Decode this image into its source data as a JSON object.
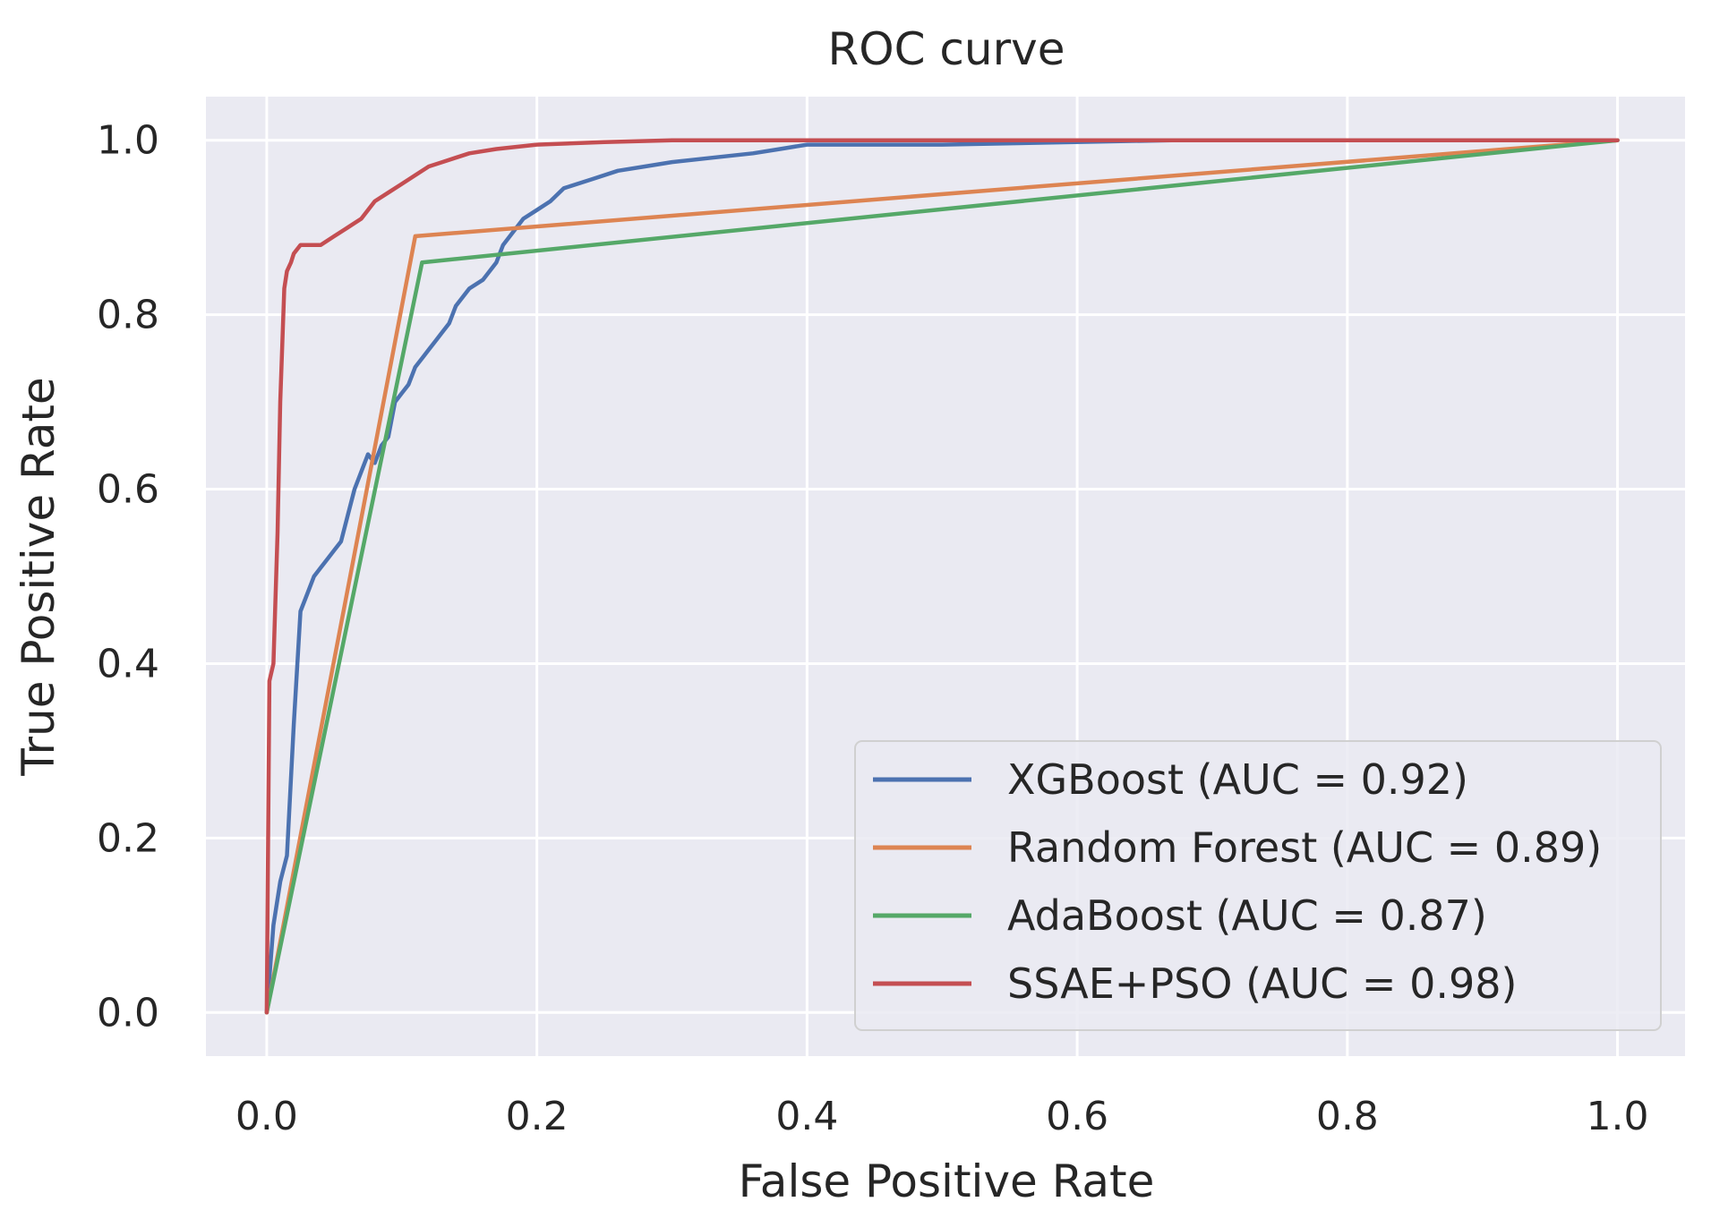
{
  "chart_data": {
    "type": "line",
    "title": "ROC curve",
    "xlabel": "False Positive Rate",
    "ylabel": "True Positive Rate",
    "xlim": [
      -0.045,
      1.05
    ],
    "ylim": [
      -0.05,
      1.05
    ],
    "xticks": [
      0.0,
      0.2,
      0.4,
      0.6,
      0.8,
      1.0
    ],
    "xtick_labels": [
      "0.0",
      "0.2",
      "0.4",
      "0.6",
      "0.8",
      "1.0"
    ],
    "yticks": [
      0.0,
      0.2,
      0.4,
      0.6,
      0.8,
      1.0
    ],
    "ytick_labels": [
      "0.0",
      "0.2",
      "0.4",
      "0.6",
      "0.8",
      "1.0"
    ],
    "grid": true,
    "legend_position": "bottom-right",
    "colors": {
      "background": "#eaeaf2",
      "grid": "#ffffff"
    },
    "series": [
      {
        "name": "XGBoost",
        "legend_label": "XGBoost (AUC = 0.92)",
        "color": "#4c72b0",
        "x": [
          0.0,
          0.005,
          0.01,
          0.015,
          0.02,
          0.025,
          0.03,
          0.035,
          0.04,
          0.045,
          0.05,
          0.055,
          0.06,
          0.065,
          0.07,
          0.075,
          0.08,
          0.085,
          0.09,
          0.095,
          0.1,
          0.105,
          0.11,
          0.115,
          0.12,
          0.125,
          0.13,
          0.135,
          0.14,
          0.15,
          0.16,
          0.17,
          0.175,
          0.18,
          0.19,
          0.2,
          0.21,
          0.22,
          0.24,
          0.26,
          0.28,
          0.3,
          0.33,
          0.36,
          0.38,
          0.4,
          0.5,
          0.67,
          1.0
        ],
        "y": [
          0.0,
          0.1,
          0.15,
          0.18,
          0.33,
          0.46,
          0.48,
          0.5,
          0.51,
          0.52,
          0.53,
          0.54,
          0.57,
          0.6,
          0.62,
          0.64,
          0.63,
          0.65,
          0.66,
          0.7,
          0.71,
          0.72,
          0.74,
          0.75,
          0.76,
          0.77,
          0.78,
          0.79,
          0.81,
          0.83,
          0.84,
          0.86,
          0.88,
          0.89,
          0.91,
          0.92,
          0.93,
          0.945,
          0.955,
          0.965,
          0.97,
          0.975,
          0.98,
          0.985,
          0.99,
          0.995,
          0.995,
          1.0,
          1.0
        ]
      },
      {
        "name": "Random Forest",
        "legend_label": "Random Forest (AUC = 0.89)",
        "color": "#dd8452",
        "x": [
          0.0,
          0.11,
          1.0
        ],
        "y": [
          0.0,
          0.89,
          1.0
        ]
      },
      {
        "name": "AdaBoost",
        "legend_label": "AdaBoost (AUC = 0.87)",
        "color": "#55a868",
        "x": [
          0.0,
          0.115,
          1.0
        ],
        "y": [
          0.0,
          0.86,
          1.0
        ]
      },
      {
        "name": "SSAE+PSO",
        "legend_label": "SSAE+PSO (AUC = 0.98)",
        "color": "#c44e52",
        "x": [
          0.0,
          0.002,
          0.005,
          0.008,
          0.01,
          0.013,
          0.015,
          0.018,
          0.02,
          0.025,
          0.03,
          0.04,
          0.05,
          0.06,
          0.07,
          0.08,
          0.09,
          0.1,
          0.11,
          0.12,
          0.13,
          0.14,
          0.15,
          0.17,
          0.2,
          0.25,
          0.3,
          0.35,
          0.5,
          0.75,
          1.0
        ],
        "y": [
          0.0,
          0.38,
          0.4,
          0.55,
          0.7,
          0.83,
          0.85,
          0.86,
          0.87,
          0.88,
          0.88,
          0.88,
          0.89,
          0.9,
          0.91,
          0.93,
          0.94,
          0.95,
          0.96,
          0.97,
          0.975,
          0.98,
          0.985,
          0.99,
          0.995,
          0.998,
          1.0,
          1.0,
          1.0,
          1.0,
          1.0
        ]
      }
    ]
  }
}
